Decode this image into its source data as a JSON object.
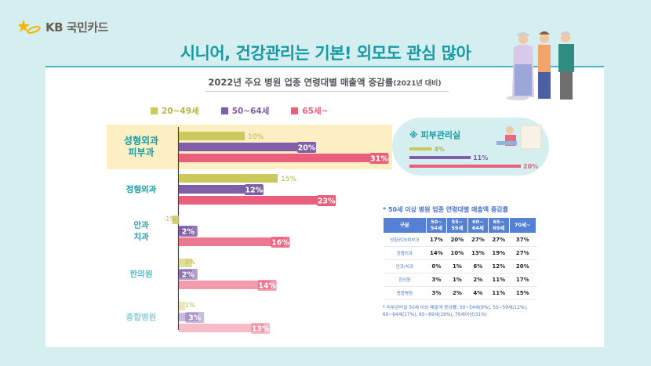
{
  "brand": {
    "logo_text": "KB 국민카드"
  },
  "headline": "시니어, 건강관리는 기본! 외모도 관심 많아",
  "subtitle_main": "2022년 주요 병원 업종 연령대별 매출액 증감률",
  "subtitle_small": "(2021년 대비)",
  "colors": {
    "age_20_49": "#c9c95e",
    "age_50_64": "#7e5fa8",
    "age_65_plus": "#ea5f7b",
    "accent": "#169aa5",
    "highlight": "#fcefc4"
  },
  "chart_data": [
    {
      "type": "bar",
      "orientation": "horizontal",
      "categories": [
        "성형외과 피부과",
        "정형외과",
        "안과 치과",
        "한의원",
        "종합병원"
      ],
      "category_lines": [
        [
          "성형외과",
          "피부과"
        ],
        [
          "정형외과"
        ],
        [
          "안과",
          "치과"
        ],
        [
          "한의원"
        ],
        [
          "종합병원"
        ]
      ],
      "series": [
        {
          "name": "20~49세",
          "values": [
            10,
            15,
            -1,
            2,
            1
          ]
        },
        {
          "name": "50~64세",
          "values": [
            20,
            12,
            2,
            2,
            3
          ]
        },
        {
          "name": "65세~",
          "values": [
            31,
            23,
            16,
            14,
            13
          ]
        }
      ],
      "value_labels": [
        [
          "10%",
          "15%",
          "-1%",
          "2%",
          "1%"
        ],
        [
          "20%",
          "12%",
          "2%",
          "2%",
          "3%"
        ],
        [
          "31%",
          "23%",
          "16%",
          "14%",
          "13%"
        ]
      ],
      "legend_position": "top",
      "grid": false
    },
    {
      "type": "bar",
      "orientation": "horizontal",
      "title": "※ 피부관리실",
      "series": [
        {
          "name": "20~49세",
          "values": [
            4
          ]
        },
        {
          "name": "50~64세",
          "values": [
            11
          ]
        },
        {
          "name": "65세~",
          "values": [
            20
          ]
        }
      ],
      "value_labels": [
        "4%",
        "11%",
        "20%"
      ]
    },
    {
      "type": "table",
      "title": "* 50세 이상 병원 업종 연령대별 매출액 증감률",
      "columns": [
        "구분",
        "50~\n54세",
        "55~\n59세",
        "60~\n64세",
        "65~\n69세",
        "70세~"
      ],
      "rows": [
        [
          "성형외과/피부과",
          "17%",
          "20%",
          "27%",
          "27%",
          "37%"
        ],
        [
          "정형외과",
          "14%",
          "10%",
          "13%",
          "19%",
          "27%"
        ],
        [
          "안과/치과",
          "0%",
          "1%",
          "6%",
          "12%",
          "20%"
        ],
        [
          "한의원",
          "3%",
          "1%",
          "2%",
          "11%",
          "17%"
        ],
        [
          "종합병원",
          "3%",
          "2%",
          "4%",
          "11%",
          "15%"
        ]
      ],
      "note": "* 피부관리실 50세 이상 매출액 증감률: 50~54세(9%), 55~59세(12%), 60~64세(17%), 65~69세(19%), 70세이상(31%)"
    }
  ]
}
